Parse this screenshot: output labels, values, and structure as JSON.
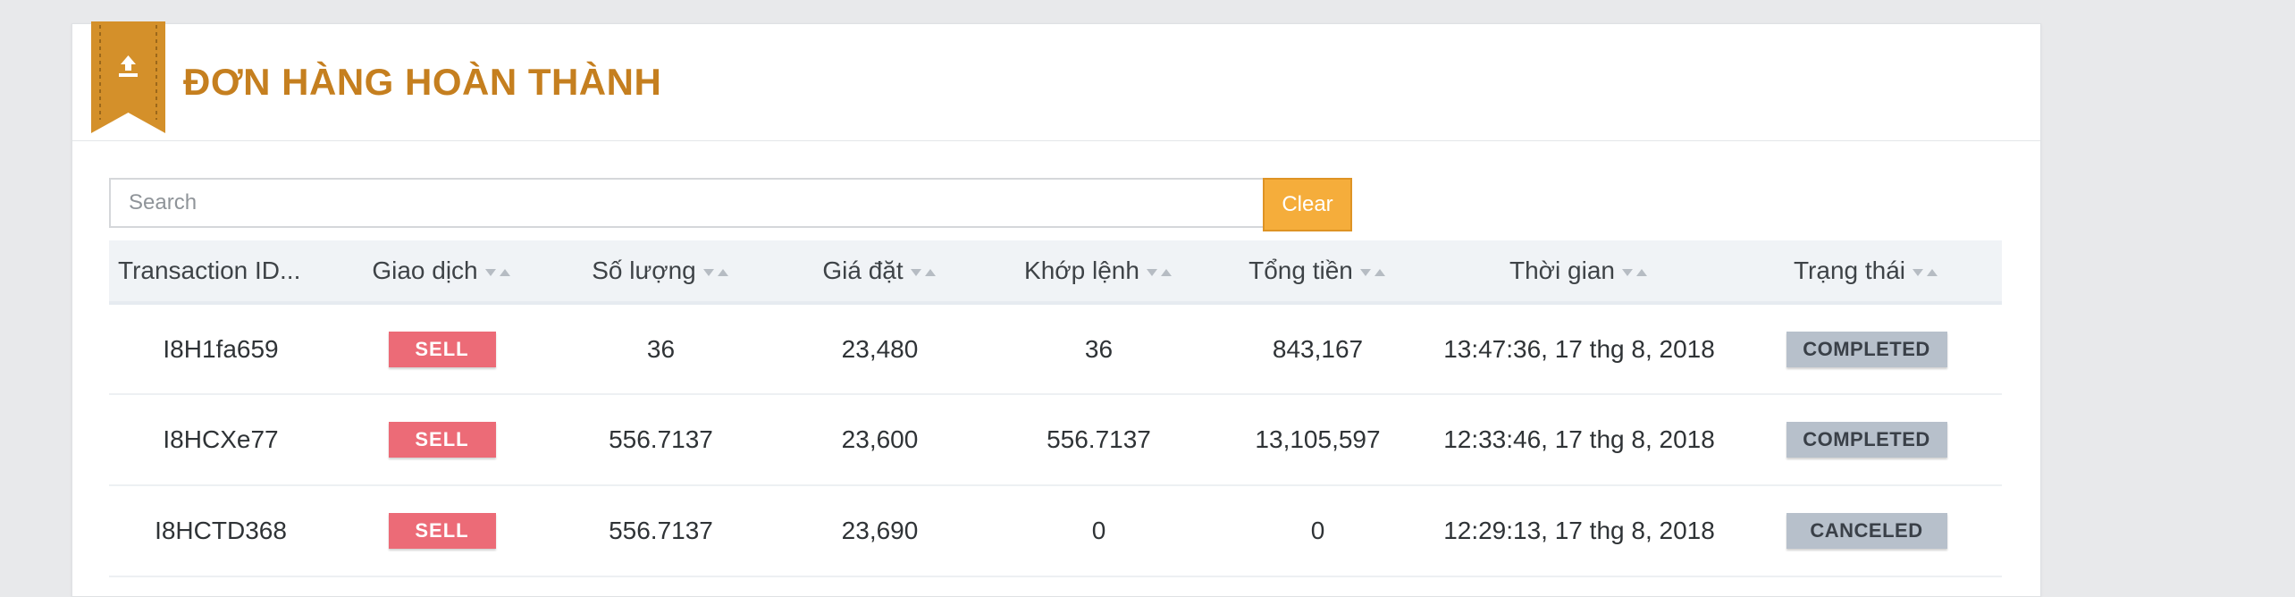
{
  "panel": {
    "title": "ĐƠN HÀNG HOÀN THÀNH",
    "icon": "upload-icon"
  },
  "search": {
    "placeholder": "Search",
    "value": "",
    "clear_label": "Clear"
  },
  "table": {
    "columns": [
      {
        "key": "id",
        "label": "Transaction ID..."
      },
      {
        "key": "side",
        "label": "Giao dịch"
      },
      {
        "key": "qty",
        "label": "Số lượng"
      },
      {
        "key": "price",
        "label": "Giá đặt"
      },
      {
        "key": "matched",
        "label": "Khớp lệnh"
      },
      {
        "key": "total",
        "label": "Tổng tiền"
      },
      {
        "key": "time",
        "label": "Thời gian"
      },
      {
        "key": "status",
        "label": "Trạng thái"
      }
    ],
    "rows": [
      {
        "id": "I8H1fa659",
        "side": "SELL",
        "qty": "36",
        "price": "23,480",
        "matched": "36",
        "total": "843,167",
        "time": "13:47:36, 17 thg 8, 2018",
        "status": "COMPLETED"
      },
      {
        "id": "I8HCXe77",
        "side": "SELL",
        "qty": "556.7137",
        "price": "23,600",
        "matched": "556.7137",
        "total": "13,105,597",
        "time": "12:33:46, 17 thg 8, 2018",
        "status": "COMPLETED"
      },
      {
        "id": "I8HCTD368",
        "side": "SELL",
        "qty": "556.7137",
        "price": "23,690",
        "matched": "0",
        "total": "0",
        "time": "12:29:13, 17 thg 8, 2018",
        "status": "CANCELED"
      }
    ]
  },
  "colors": {
    "accent": "#c57f1f",
    "ribbon": "#d4902a",
    "clear_button": "#f5ad3b",
    "sell_badge": "#ec6b77",
    "status_badge": "#b7c0cb"
  }
}
